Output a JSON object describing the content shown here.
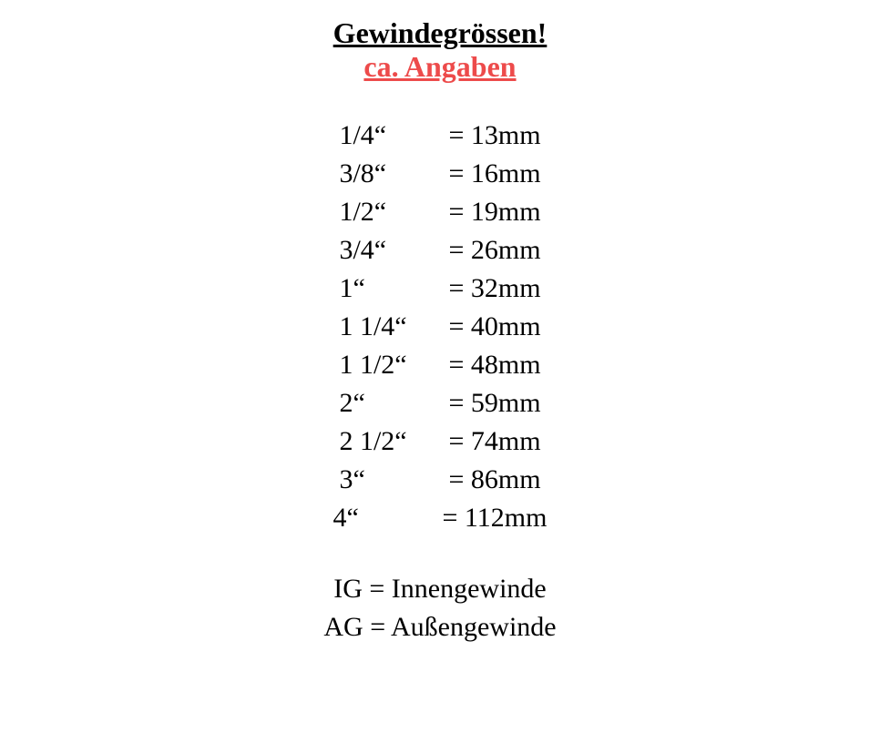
{
  "title": "Gewindegrössen!",
  "subtitle": "ca. Angaben",
  "title_color": "#000000",
  "subtitle_color": "#ed4b4b",
  "font_family": "Georgia, 'Times New Roman', Times, serif",
  "title_fontsize": 32,
  "body_fontsize": 30,
  "background_color": "#ffffff",
  "text_color": "#000000",
  "rows": [
    {
      "size": "1/4“",
      "mm": "= 13mm"
    },
    {
      "size": "3/8“",
      "mm": "= 16mm"
    },
    {
      "size": "1/2“",
      "mm": "= 19mm"
    },
    {
      "size": "3/4“",
      "mm": "= 26mm"
    },
    {
      "size": "1“",
      "mm": "= 32mm"
    },
    {
      "size": "1 1/4“",
      "mm": "= 40mm"
    },
    {
      "size": "1 1/2“",
      "mm": "= 48mm"
    },
    {
      "size": "2“",
      "mm": "= 59mm"
    },
    {
      "size": "2 1/2“",
      "mm": "= 74mm"
    },
    {
      "size": "3“",
      "mm": "= 86mm"
    },
    {
      "size": "4“",
      "mm": "= 112mm"
    }
  ],
  "legend": [
    "IG = Innengewinde",
    "AG = Außengewinde"
  ]
}
